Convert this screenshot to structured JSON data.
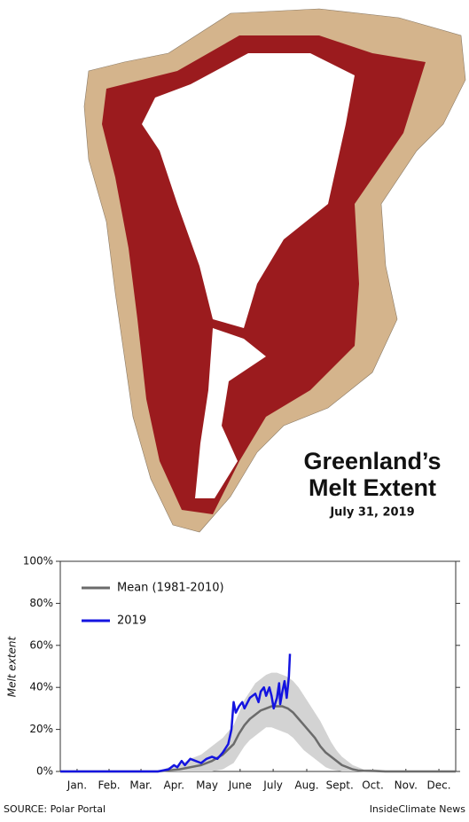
{
  "title_lines": [
    "Greenland’s",
    "Melt Extent"
  ],
  "date": "July 31, 2019",
  "source": "SOURCE: Polar Portal",
  "credit": "InsideClimate News",
  "chart_data": {
    "type": "line",
    "y_label": "Melt extent",
    "xlim": [
      0,
      365
    ],
    "xticks": [
      {
        "value": 15.5,
        "label": "Jan."
      },
      {
        "value": 45,
        "label": "Feb."
      },
      {
        "value": 74.5,
        "label": "Mar."
      },
      {
        "value": 105,
        "label": "Apr."
      },
      {
        "value": 135.5,
        "label": "May"
      },
      {
        "value": 166,
        "label": "June"
      },
      {
        "value": 196.5,
        "label": "July"
      },
      {
        "value": 227.5,
        "label": "Aug."
      },
      {
        "value": 258,
        "label": "Sept."
      },
      {
        "value": 288.5,
        "label": "Oct."
      },
      {
        "value": 319,
        "label": "Nov."
      },
      {
        "value": 349.5,
        "label": "Dec."
      }
    ],
    "ylim": [
      0,
      100
    ],
    "yticks": [
      {
        "value": 0,
        "label": "0%"
      },
      {
        "value": 20,
        "label": "20%"
      },
      {
        "value": 40,
        "label": "40%"
      },
      {
        "value": 60,
        "label": "60%"
      },
      {
        "value": 80,
        "label": "80%"
      },
      {
        "value": 100,
        "label": "100%"
      }
    ],
    "band": {
      "color": "#d3d3d3",
      "x": [
        0,
        30,
        60,
        90,
        100,
        110,
        120,
        130,
        140,
        150,
        160,
        165,
        170,
        175,
        180,
        185,
        190,
        195,
        200,
        205,
        210,
        215,
        220,
        225,
        230,
        235,
        240,
        245,
        250,
        255,
        260,
        265,
        270,
        275,
        280,
        290,
        300,
        330,
        365
      ],
      "low": [
        0,
        0,
        0,
        0,
        0,
        0,
        0,
        0,
        0,
        1,
        4,
        8,
        12,
        15,
        17,
        19,
        21,
        21,
        20,
        19,
        18,
        16,
        13,
        10,
        8,
        6,
        4,
        2,
        1,
        0.5,
        0,
        0,
        0,
        0,
        0,
        0,
        0,
        0,
        0
      ],
      "high": [
        0,
        0,
        0,
        0,
        2,
        3,
        6,
        8,
        12,
        16,
        22,
        28,
        34,
        38,
        42,
        44,
        46,
        47,
        47,
        46,
        45,
        43,
        40,
        36,
        32,
        28,
        24,
        19,
        14,
        10,
        7,
        5,
        3,
        2,
        1,
        1,
        0.5,
        0,
        0
      ]
    },
    "series": [
      {
        "name": "Mean (1981-2010)",
        "color": "#6b6b6b",
        "x": [
          0,
          30,
          60,
          90,
          100,
          110,
          120,
          130,
          140,
          150,
          160,
          165,
          170,
          175,
          180,
          185,
          190,
          195,
          200,
          205,
          210,
          215,
          220,
          225,
          230,
          235,
          240,
          245,
          250,
          255,
          260,
          265,
          270,
          275,
          280,
          290,
          300,
          330,
          365
        ],
        "values": [
          0,
          0,
          0,
          0,
          0.5,
          1,
          2,
          3,
          5,
          8,
          13,
          18,
          22,
          25,
          27,
          29,
          30,
          31,
          31,
          31,
          30,
          28,
          25,
          22,
          19,
          16,
          12,
          9,
          7,
          5,
          3,
          2,
          1,
          0.5,
          0.3,
          0.2,
          0,
          0,
          0
        ]
      },
      {
        "name": "2019",
        "color": "#1414e0",
        "x": [
          0,
          90,
          100,
          105,
          108,
          112,
          115,
          120,
          125,
          130,
          135,
          140,
          145,
          150,
          155,
          158,
          160,
          162,
          165,
          168,
          170,
          175,
          180,
          183,
          185,
          188,
          190,
          193,
          195,
          197,
          200,
          202,
          203,
          205,
          207,
          209,
          211,
          212
        ],
        "values": [
          0,
          0,
          1,
          3,
          2,
          5,
          3,
          6,
          5,
          4,
          6,
          7,
          6,
          9,
          13,
          20,
          33,
          28,
          31,
          33,
          30,
          35,
          37,
          33,
          38,
          40,
          36,
          40,
          36,
          30,
          35,
          42,
          32,
          38,
          43,
          35,
          45,
          56
        ]
      }
    ]
  }
}
